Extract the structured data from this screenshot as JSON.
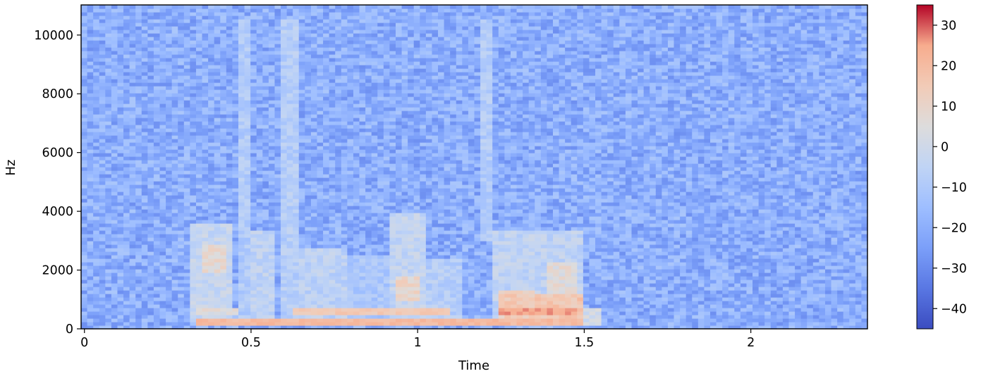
{
  "chart_data": {
    "type": "heatmap",
    "title": "",
    "xlabel": "Time",
    "ylabel": "Hz",
    "xlim": [
      -0.01,
      2.35
    ],
    "ylim": [
      0,
      11025
    ],
    "x_ticks": [
      {
        "value": 0,
        "label": "0"
      },
      {
        "value": 0.5,
        "label": "0.5"
      },
      {
        "value": 1,
        "label": "1"
      },
      {
        "value": 1.5,
        "label": "1.5"
      },
      {
        "value": 2,
        "label": "2"
      }
    ],
    "y_ticks": [
      {
        "value": 0,
        "label": "0"
      },
      {
        "value": 2000,
        "label": "2000"
      },
      {
        "value": 4000,
        "label": "4000"
      },
      {
        "value": 6000,
        "label": "6000"
      },
      {
        "value": 8000,
        "label": "8000"
      },
      {
        "value": 10000,
        "label": "10000"
      }
    ],
    "colorbar": {
      "colormap": "coolwarm",
      "range": [
        -45,
        35
      ],
      "ticks": [
        {
          "value": 30,
          "label": "30"
        },
        {
          "value": 20,
          "label": "20"
        },
        {
          "value": 10,
          "label": "10"
        },
        {
          "value": 0,
          "label": "0"
        },
        {
          "value": -10,
          "label": "−10"
        },
        {
          "value": -20,
          "label": "−20"
        },
        {
          "value": -30,
          "label": "−30"
        },
        {
          "value": -40,
          "label": "−40"
        }
      ]
    },
    "background_level_db": -20,
    "energy_regions": [
      {
        "t0": 0.32,
        "t1": 0.44,
        "f0": 200,
        "f1": 3600,
        "db": -3
      },
      {
        "t0": 0.36,
        "t1": 0.43,
        "f0": 1900,
        "f1": 2900,
        "db": 8
      },
      {
        "t0": 0.33,
        "t1": 0.46,
        "f0": 480,
        "f1": 700,
        "db": 6
      },
      {
        "t0": 0.46,
        "t1": 0.5,
        "f0": 400,
        "f1": 10500,
        "db": -9
      },
      {
        "t0": 0.49,
        "t1": 0.57,
        "f0": 300,
        "f1": 3300,
        "db": -5
      },
      {
        "t0": 0.59,
        "t1": 0.64,
        "f0": 300,
        "f1": 10500,
        "db": -8
      },
      {
        "t0": 0.64,
        "t1": 0.78,
        "f0": 300,
        "f1": 2800,
        "db": -6
      },
      {
        "t0": 0.78,
        "t1": 0.92,
        "f0": 150,
        "f1": 2500,
        "db": -11
      },
      {
        "t0": 0.92,
        "t1": 1.02,
        "f0": 150,
        "f1": 3900,
        "db": -4
      },
      {
        "t0": 0.94,
        "t1": 1.01,
        "f0": 900,
        "f1": 1800,
        "db": 10
      },
      {
        "t0": 1.02,
        "t1": 1.13,
        "f0": 150,
        "f1": 2400,
        "db": -8
      },
      {
        "t0": 1.18,
        "t1": 1.23,
        "f0": 3000,
        "f1": 10500,
        "db": -9
      },
      {
        "t0": 1.22,
        "t1": 1.5,
        "f0": 150,
        "f1": 3400,
        "db": -5
      },
      {
        "t0": 1.25,
        "t1": 1.36,
        "f0": 400,
        "f1": 1300,
        "db": 14
      },
      {
        "t0": 1.35,
        "t1": 1.49,
        "f0": 300,
        "f1": 1200,
        "db": 16
      },
      {
        "t0": 1.38,
        "t1": 1.47,
        "f0": 1200,
        "f1": 2300,
        "db": 6
      },
      {
        "t0": 1.48,
        "t1": 1.55,
        "f0": 150,
        "f1": 700,
        "db": 1
      }
    ],
    "harmonic_tracks": [
      {
        "t0": 0.33,
        "t1": 1.5,
        "f0_hz": 270,
        "db": 20
      },
      {
        "t0": 0.62,
        "t1": 1.1,
        "f0_hz": 560,
        "db": 15
      },
      {
        "t0": 1.25,
        "t1": 1.48,
        "f0_hz": 650,
        "db": 25
      }
    ]
  }
}
